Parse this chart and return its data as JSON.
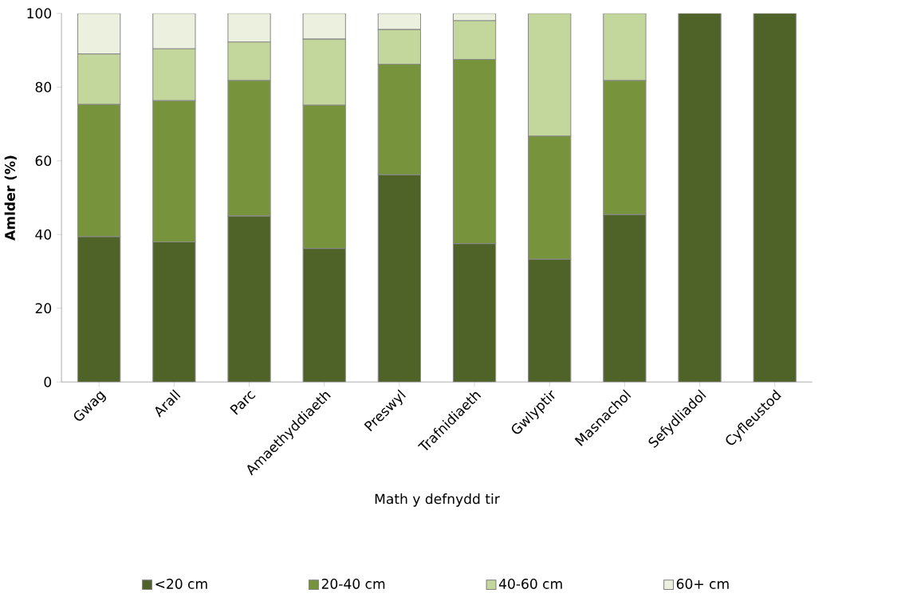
{
  "chart_data": {
    "type": "bar",
    "stacked": true,
    "xlabel": "Math y defnydd tir",
    "ylabel": "Amlder (%)",
    "categories": [
      "Gwag",
      "Arall",
      "Parc",
      "Amaethyddiaeth",
      "Preswyl",
      "Trafnidiaeth",
      "Gwlyptir",
      "Masnachol",
      "Sefydliadol",
      "Cyfleustod"
    ],
    "series": [
      {
        "name": "<20 cm",
        "color": "#4f6228",
        "values": [
          39.4,
          38,
          45,
          36.2,
          56.2,
          37.5,
          33.3,
          45.4,
          100,
          100
        ]
      },
      {
        "name": "20-40 cm",
        "color": "#77933c",
        "values": [
          35.9,
          38.3,
          36.8,
          38.9,
          30,
          50,
          33.4,
          36.4,
          0,
          0
        ]
      },
      {
        "name": "40-60 cm",
        "color": "#c3d69b",
        "values": [
          13.7,
          14.1,
          10.4,
          17.9,
          9.4,
          10.5,
          33.3,
          18.2,
          0,
          0
        ]
      },
      {
        "name": "60+ cm",
        "color": "#ebf1de",
        "values": [
          11,
          9.6,
          7.8,
          7,
          4.4,
          2,
          0,
          0,
          0,
          0
        ]
      }
    ],
    "ylim": [
      0,
      100
    ],
    "yticks": [
      0,
      20,
      40,
      60,
      80,
      100
    ],
    "grid": false,
    "legend": "bottom"
  }
}
